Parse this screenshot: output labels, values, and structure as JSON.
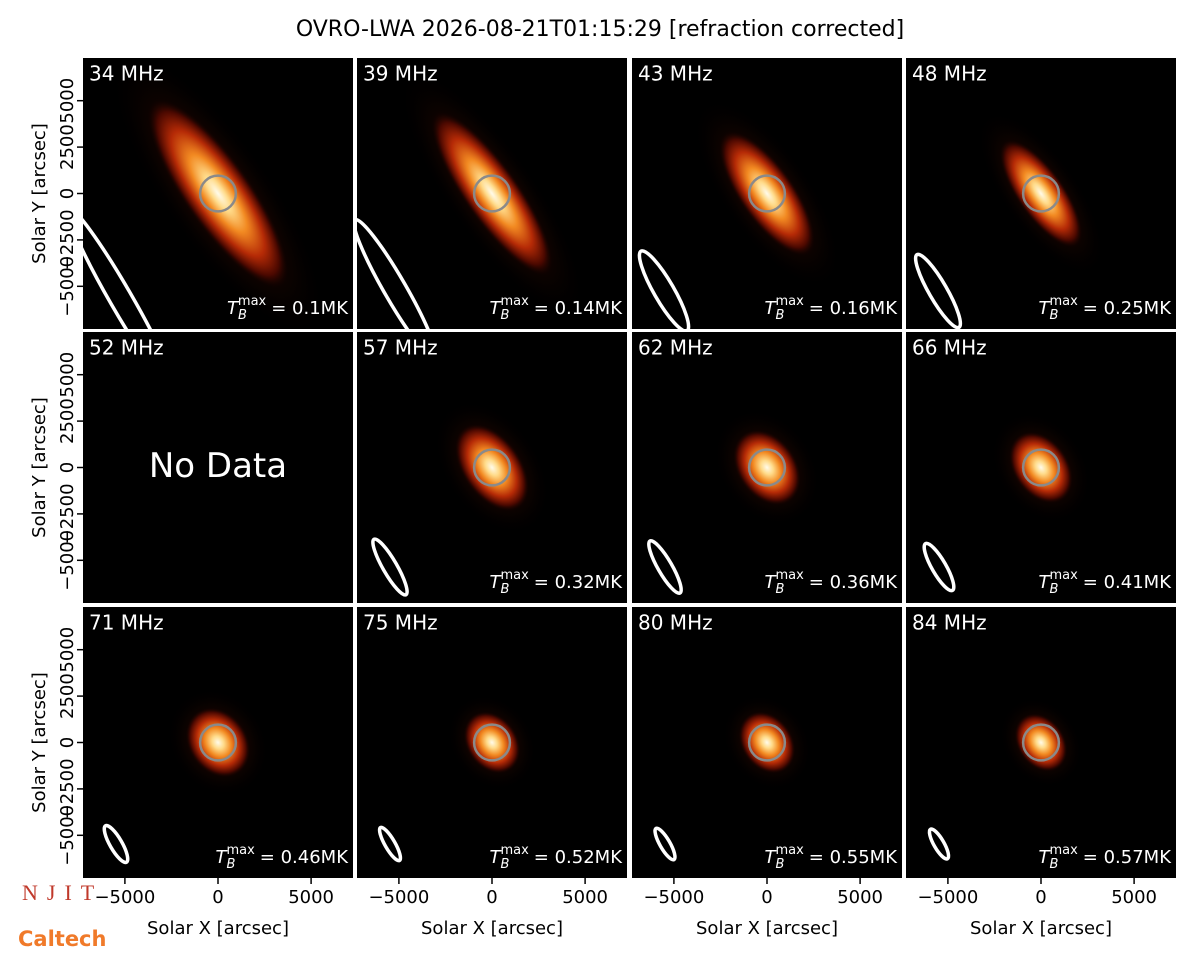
{
  "chart_data": {
    "type": "image-grid",
    "title": "OVRO-LWA 2026-08-21T01:15:29 [refraction corrected]",
    "x_label": "Solar X [arcsec]",
    "y_label": "Solar Y [arcsec]",
    "xlim": [
      -7250,
      7250
    ],
    "ylim": [
      -7300,
      7300
    ],
    "xticks": [
      {
        "value": -5000,
        "label": "−5000"
      },
      0,
      5000
    ],
    "yticks": [
      {
        "value": -5000,
        "label": "−5000"
      },
      {
        "value": -2500,
        "label": "−2500"
      },
      0,
      2500,
      5000
    ],
    "tb_symbol": "T",
    "tb_sub": "B",
    "tb_sup": "max",
    "panels": [
      {
        "label": "34 MHz",
        "tb": "= 0.1MK"
      },
      {
        "label": "39 MHz",
        "tb": "= 0.14MK"
      },
      {
        "label": "43 MHz",
        "tb": "= 0.16MK"
      },
      {
        "label": "48 MHz",
        "tb": "= 0.25MK"
      },
      {
        "label": "52 MHz",
        "note": "No Data"
      },
      {
        "label": "57 MHz",
        "tb": "= 0.32MK"
      },
      {
        "label": "62 MHz",
        "tb": "= 0.36MK"
      },
      {
        "label": "66 MHz",
        "tb": "= 0.41MK"
      },
      {
        "label": "71 MHz",
        "tb": "= 0.46MK"
      },
      {
        "label": "75 MHz",
        "tb": "= 0.52MK"
      },
      {
        "label": "80 MHz",
        "tb": "= 0.55MK"
      },
      {
        "label": "84 MHz",
        "tb": "= 0.57MK"
      }
    ],
    "logos": [
      "NJIT",
      "Caltech"
    ]
  }
}
